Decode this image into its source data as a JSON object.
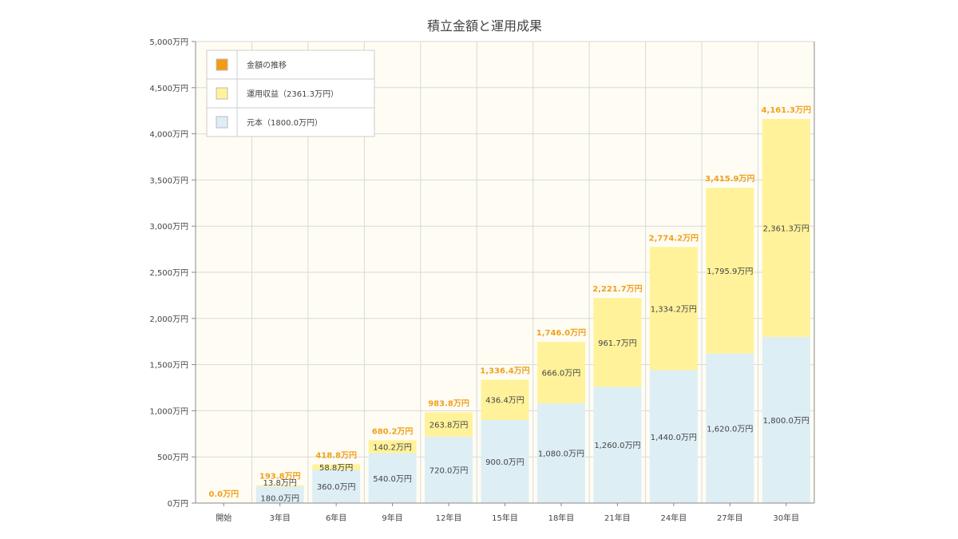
{
  "chart_data": {
    "type": "bar",
    "title": "積立金額と運用成果",
    "xlabel": "",
    "ylabel": "",
    "categories": [
      "開始",
      "3年目",
      "6年目",
      "9年目",
      "12年目",
      "15年目",
      "18年目",
      "21年目",
      "24年目",
      "27年目",
      "30年目"
    ],
    "y_ticks": [
      "0万円",
      "500万円",
      "1,000万円",
      "1,500万円",
      "2,000万円",
      "2,500万円",
      "3,000万円",
      "3,500万円",
      "4,000万円",
      "4,500万円",
      "5,000万円"
    ],
    "ylim": [
      0,
      5000
    ],
    "stacked": true,
    "grid": true,
    "legend_position": "top-left",
    "legend": [
      {
        "label": "金額の推移",
        "color": "#f39c12"
      },
      {
        "label": "運用収益（2361.3万円）",
        "color": "#fff29a"
      },
      {
        "label": "元本（1800.0万円）",
        "color": "#ddeef5"
      }
    ],
    "series": [
      {
        "color": "#ddeef5",
        "values": [
          0,
          180.0,
          360.0,
          540.0,
          720.0,
          900.0,
          1080.0,
          1260.0,
          1440.0,
          1620.0,
          1800.0
        ],
        "labels": [
          "",
          "180.0万円",
          "360.0万円",
          "540.0万円",
          "720.0万円",
          "900.0万円",
          "1,080.0万円",
          "1,260.0万円",
          "1,440.0万円",
          "1,620.0万円",
          "1,800.0万円"
        ]
      },
      {
        "color": "#fff29a",
        "values": [
          0,
          13.8,
          58.8,
          140.2,
          263.8,
          436.4,
          666.0,
          961.7,
          1334.2,
          1795.9,
          2361.3
        ],
        "labels": [
          "",
          "13.8万円",
          "58.8万円",
          "140.2万円",
          "263.8万円",
          "436.4万円",
          "666.0万円",
          "961.7万円",
          "1,334.2万円",
          "1,795.9万円",
          "2,361.3万円"
        ]
      }
    ],
    "totals": {
      "color": "#f0a020",
      "values": [
        0.0,
        193.8,
        418.8,
        680.2,
        983.8,
        1336.4,
        1746.0,
        2221.7,
        2774.2,
        3415.9,
        4161.3
      ],
      "labels": [
        "0.0万円",
        "193.8万円",
        "418.8万円",
        "680.2万円",
        "983.8万円",
        "1,336.4万円",
        "1,746.0万円",
        "2,221.7万円",
        "2,774.2万円",
        "3,415.9万円",
        "4,161.3万円"
      ]
    }
  }
}
